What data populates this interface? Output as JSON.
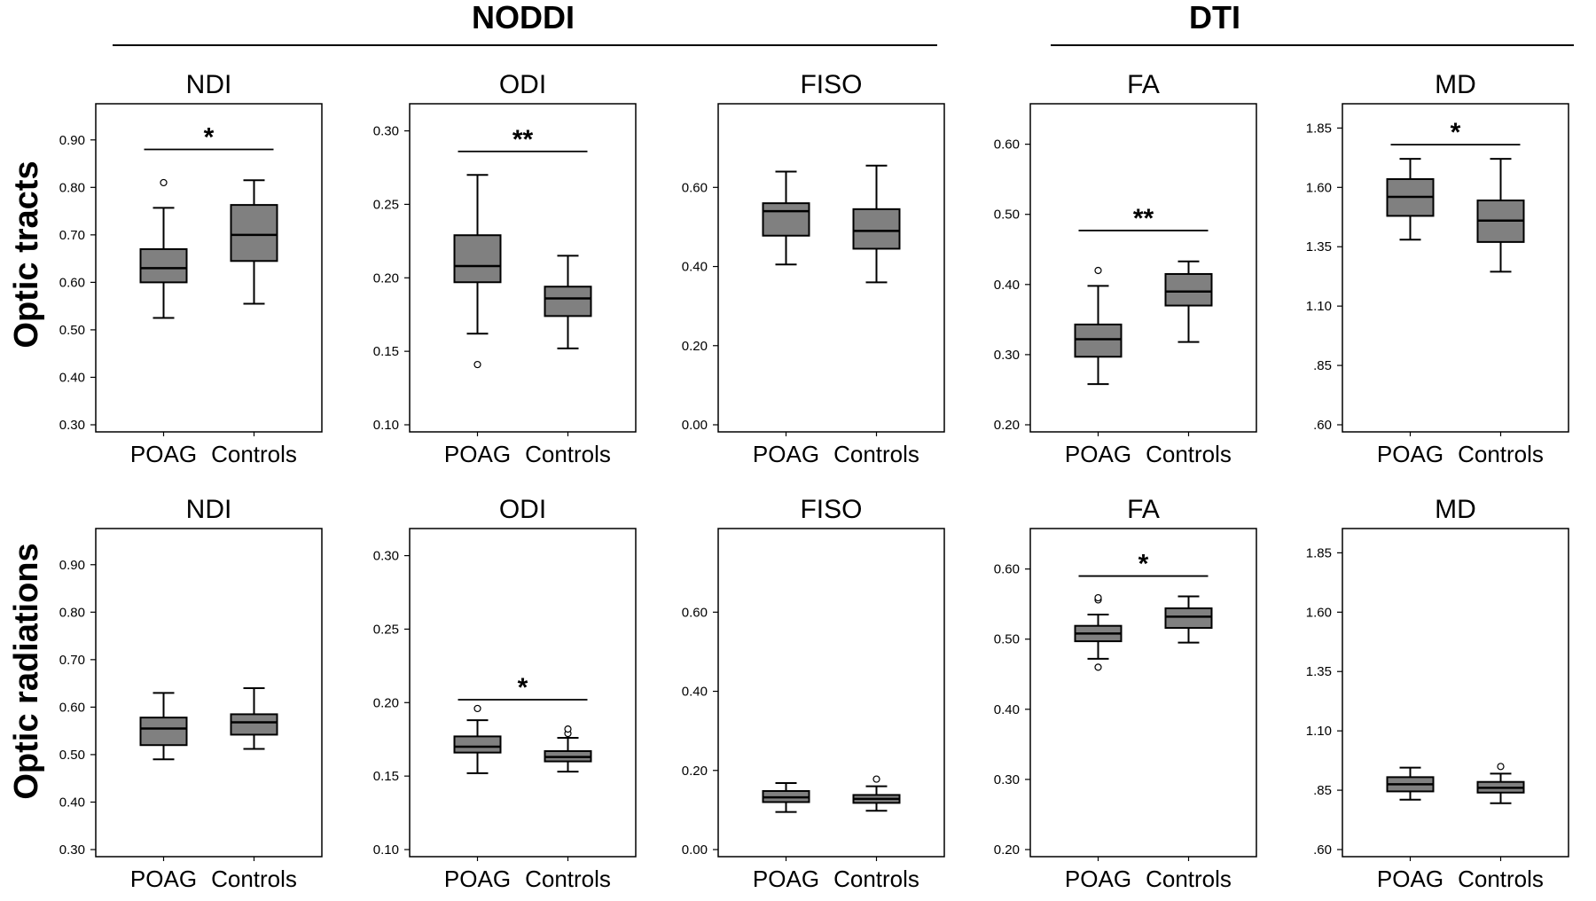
{
  "figure": {
    "groups": [
      {
        "title": "NODDI"
      },
      {
        "title": "DTI"
      }
    ],
    "rows": [
      {
        "label": "Optic tracts"
      },
      {
        "label": "Optic radiations"
      }
    ]
  },
  "chart_data": [
    {
      "type": "box",
      "row": "Optic tracts",
      "title": "NDI",
      "categories": [
        "POAG",
        "Controls"
      ],
      "ylim": [
        0.3,
        0.95
      ],
      "yticks": [
        0.3,
        0.4,
        0.5,
        0.6,
        0.7,
        0.8,
        0.9
      ],
      "ytick_labels": [
        "0.30",
        "0.40",
        "0.50",
        "0.60",
        "0.70",
        "0.80",
        "0.90"
      ],
      "boxes": [
        {
          "min": 0.525,
          "q1": 0.6,
          "median": 0.63,
          "q3": 0.67,
          "max": 0.757,
          "outliers": [
            0.81
          ]
        },
        {
          "min": 0.555,
          "q1": 0.645,
          "median": 0.7,
          "q3": 0.763,
          "max": 0.815,
          "outliers": []
        }
      ],
      "significance": {
        "label": "*",
        "y": 0.88
      }
    },
    {
      "type": "box",
      "row": "Optic tracts",
      "title": "ODI",
      "categories": [
        "POAG",
        "Controls"
      ],
      "ylim": [
        0.1,
        0.31
      ],
      "yticks": [
        0.1,
        0.15,
        0.2,
        0.25,
        0.3
      ],
      "ytick_labels": [
        "0.10",
        "0.15",
        "0.20",
        "0.25",
        "0.30"
      ],
      "boxes": [
        {
          "min": 0.162,
          "q1": 0.197,
          "median": 0.208,
          "q3": 0.229,
          "max": 0.27,
          "outliers": [
            0.141
          ]
        },
        {
          "min": 0.152,
          "q1": 0.174,
          "median": 0.186,
          "q3": 0.194,
          "max": 0.215,
          "outliers": []
        }
      ],
      "significance": {
        "label": "**",
        "y": 0.286
      }
    },
    {
      "type": "box",
      "row": "Optic tracts",
      "title": "FISO",
      "categories": [
        "POAG",
        "Controls"
      ],
      "ylim": [
        0.0,
        0.78
      ],
      "yticks": [
        0.0,
        0.2,
        0.4,
        0.6
      ],
      "ytick_labels": [
        "0.00",
        "0.20",
        "0.40",
        "0.60"
      ],
      "boxes": [
        {
          "min": 0.405,
          "q1": 0.478,
          "median": 0.54,
          "q3": 0.56,
          "max": 0.64,
          "outliers": []
        },
        {
          "min": 0.36,
          "q1": 0.445,
          "median": 0.49,
          "q3": 0.545,
          "max": 0.655,
          "outliers": []
        }
      ],
      "significance": null
    },
    {
      "type": "box",
      "row": "Optic tracts",
      "title": "FA",
      "categories": [
        "POAG",
        "Controls"
      ],
      "ylim": [
        0.2,
        0.64
      ],
      "yticks": [
        0.2,
        0.3,
        0.4,
        0.5,
        0.6
      ],
      "ytick_labels": [
        "0.20",
        "0.30",
        "0.40",
        "0.50",
        "0.60"
      ],
      "boxes": [
        {
          "min": 0.258,
          "q1": 0.297,
          "median": 0.322,
          "q3": 0.343,
          "max": 0.398,
          "outliers": [
            0.42
          ]
        },
        {
          "min": 0.318,
          "q1": 0.37,
          "median": 0.39,
          "q3": 0.415,
          "max": 0.433,
          "outliers": []
        }
      ],
      "significance": {
        "label": "**",
        "y": 0.477
      }
    },
    {
      "type": "box",
      "row": "Optic tracts",
      "title": "MD",
      "categories": [
        "POAG",
        "Controls"
      ],
      "ylim": [
        0.6,
        1.9
      ],
      "yticks": [
        0.6,
        0.85,
        1.1,
        1.35,
        1.6,
        1.85
      ],
      "ytick_labels": [
        ".60",
        ".85",
        "1.10",
        "1.35",
        "1.60",
        "1.85"
      ],
      "boxes": [
        {
          "min": 1.38,
          "q1": 1.48,
          "median": 1.56,
          "q3": 1.635,
          "max": 1.72,
          "outliers": []
        },
        {
          "min": 1.245,
          "q1": 1.37,
          "median": 1.46,
          "q3": 1.545,
          "max": 1.72,
          "outliers": []
        }
      ],
      "significance": {
        "label": "*",
        "y": 1.78
      }
    },
    {
      "type": "box",
      "row": "Optic radiations",
      "title": "NDI",
      "categories": [
        "POAG",
        "Controls"
      ],
      "ylim": [
        0.3,
        0.95
      ],
      "yticks": [
        0.3,
        0.4,
        0.5,
        0.6,
        0.7,
        0.8,
        0.9
      ],
      "ytick_labels": [
        "0.30",
        "0.40",
        "0.50",
        "0.60",
        "0.70",
        "0.80",
        "0.90"
      ],
      "boxes": [
        {
          "min": 0.49,
          "q1": 0.52,
          "median": 0.555,
          "q3": 0.578,
          "max": 0.63,
          "outliers": []
        },
        {
          "min": 0.512,
          "q1": 0.542,
          "median": 0.568,
          "q3": 0.585,
          "max": 0.64,
          "outliers": []
        }
      ],
      "significance": null
    },
    {
      "type": "box",
      "row": "Optic radiations",
      "title": "ODI",
      "categories": [
        "POAG",
        "Controls"
      ],
      "ylim": [
        0.1,
        0.31
      ],
      "yticks": [
        0.1,
        0.15,
        0.2,
        0.25,
        0.3
      ],
      "ytick_labels": [
        "0.10",
        "0.15",
        "0.20",
        "0.25",
        "0.30"
      ],
      "boxes": [
        {
          "min": 0.152,
          "q1": 0.166,
          "median": 0.17,
          "q3": 0.177,
          "max": 0.188,
          "outliers": [
            0.196
          ]
        },
        {
          "min": 0.153,
          "q1": 0.16,
          "median": 0.163,
          "q3": 0.167,
          "max": 0.176,
          "outliers": [
            0.179,
            0.182
          ]
        }
      ],
      "significance": {
        "label": "*",
        "y": 0.202
      }
    },
    {
      "type": "box",
      "row": "Optic radiations",
      "title": "FISO",
      "categories": [
        "POAG",
        "Controls"
      ],
      "ylim": [
        0.0,
        0.78
      ],
      "yticks": [
        0.0,
        0.2,
        0.4,
        0.6
      ],
      "ytick_labels": [
        "0.00",
        "0.20",
        "0.40",
        "0.60"
      ],
      "boxes": [
        {
          "min": 0.095,
          "q1": 0.12,
          "median": 0.132,
          "q3": 0.148,
          "max": 0.168,
          "outliers": []
        },
        {
          "min": 0.098,
          "q1": 0.118,
          "median": 0.128,
          "q3": 0.138,
          "max": 0.16,
          "outliers": [
            0.178
          ]
        }
      ],
      "significance": null
    },
    {
      "type": "box",
      "row": "Optic radiations",
      "title": "FA",
      "categories": [
        "POAG",
        "Controls"
      ],
      "ylim": [
        0.2,
        0.64
      ],
      "yticks": [
        0.2,
        0.3,
        0.4,
        0.5,
        0.6
      ],
      "ytick_labels": [
        "0.20",
        "0.30",
        "0.40",
        "0.50",
        "0.60"
      ],
      "boxes": [
        {
          "min": 0.472,
          "q1": 0.497,
          "median": 0.508,
          "q3": 0.519,
          "max": 0.535,
          "outliers": [
            0.46,
            0.556,
            0.559
          ]
        },
        {
          "min": 0.495,
          "q1": 0.516,
          "median": 0.532,
          "q3": 0.544,
          "max": 0.561,
          "outliers": []
        }
      ],
      "significance": {
        "label": "*",
        "y": 0.59
      }
    },
    {
      "type": "box",
      "row": "Optic radiations",
      "title": "MD",
      "categories": [
        "POAG",
        "Controls"
      ],
      "ylim": [
        0.6,
        1.9
      ],
      "yticks": [
        0.6,
        0.85,
        1.1,
        1.35,
        1.6,
        1.85
      ],
      "ytick_labels": [
        ".60",
        ".85",
        "1.10",
        "1.35",
        "1.60",
        "1.85"
      ],
      "boxes": [
        {
          "min": 0.81,
          "q1": 0.845,
          "median": 0.875,
          "q3": 0.905,
          "max": 0.945,
          "outliers": []
        },
        {
          "min": 0.795,
          "q1": 0.84,
          "median": 0.86,
          "q3": 0.885,
          "max": 0.92,
          "outliers": [
            0.95
          ]
        }
      ],
      "significance": null
    }
  ],
  "style": {
    "box_fill": "#808080",
    "line_color": "#000000",
    "outlier_fill": "#ffffff"
  }
}
